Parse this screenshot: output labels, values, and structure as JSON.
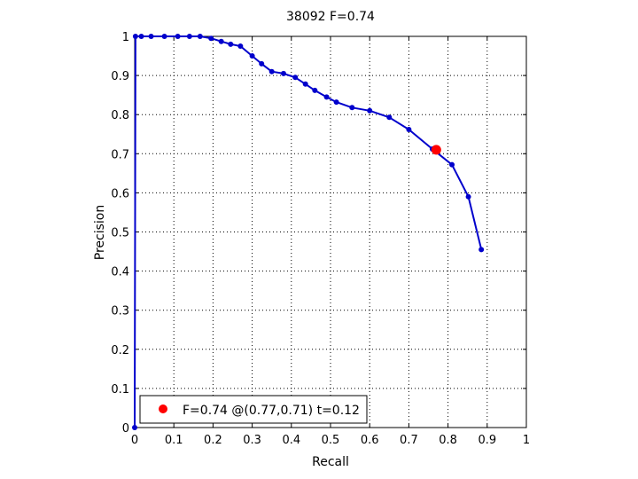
{
  "chart_data": {
    "type": "line",
    "title": "38092 F=0.74",
    "xlabel": "Recall",
    "ylabel": "Precision",
    "xlim": [
      0,
      1
    ],
    "ylim": [
      0,
      1
    ],
    "xticks": [
      0,
      0.1,
      0.2,
      0.3,
      0.4,
      0.5,
      0.6,
      0.7,
      0.8,
      0.9,
      1
    ],
    "yticks": [
      0,
      0.1,
      0.2,
      0.3,
      0.4,
      0.5,
      0.6,
      0.7,
      0.8,
      0.9,
      1
    ],
    "xtick_labels": [
      "0",
      "0.1",
      "0.2",
      "0.3",
      "0.4",
      "0.5",
      "0.6",
      "0.7",
      "0.8",
      "0.9",
      "1"
    ],
    "ytick_labels": [
      "0",
      "0.1",
      "0.2",
      "0.3",
      "0.4",
      "0.5",
      "0.6",
      "0.7",
      "0.8",
      "0.9",
      "1"
    ],
    "grid": true,
    "legend_placement": "bottom-left",
    "series": [
      {
        "color": "#0000cc",
        "x": [
          0,
          0.002,
          0.017,
          0.042,
          0.076,
          0.11,
          0.14,
          0.167,
          0.195,
          0.221,
          0.245,
          0.27,
          0.3,
          0.324,
          0.35,
          0.38,
          0.41,
          0.436,
          0.46,
          0.49,
          0.515,
          0.555,
          0.6,
          0.65,
          0.7,
          0.76,
          0.81,
          0.852,
          0.885
        ],
        "y": [
          0,
          1,
          1,
          1,
          1,
          1,
          1,
          1,
          0.995,
          0.987,
          0.98,
          0.975,
          0.95,
          0.93,
          0.91,
          0.905,
          0.895,
          0.878,
          0.862,
          0.845,
          0.832,
          0.818,
          0.81,
          0.793,
          0.762,
          0.712,
          0.672,
          0.59,
          0.455
        ]
      }
    ],
    "best_point": {
      "x": 0.77,
      "y": 0.71,
      "color": "#ff0000"
    },
    "legend": {
      "label": "F=0.74 @(0.77,0.71) t=0.12",
      "color": "#ff0000"
    }
  }
}
